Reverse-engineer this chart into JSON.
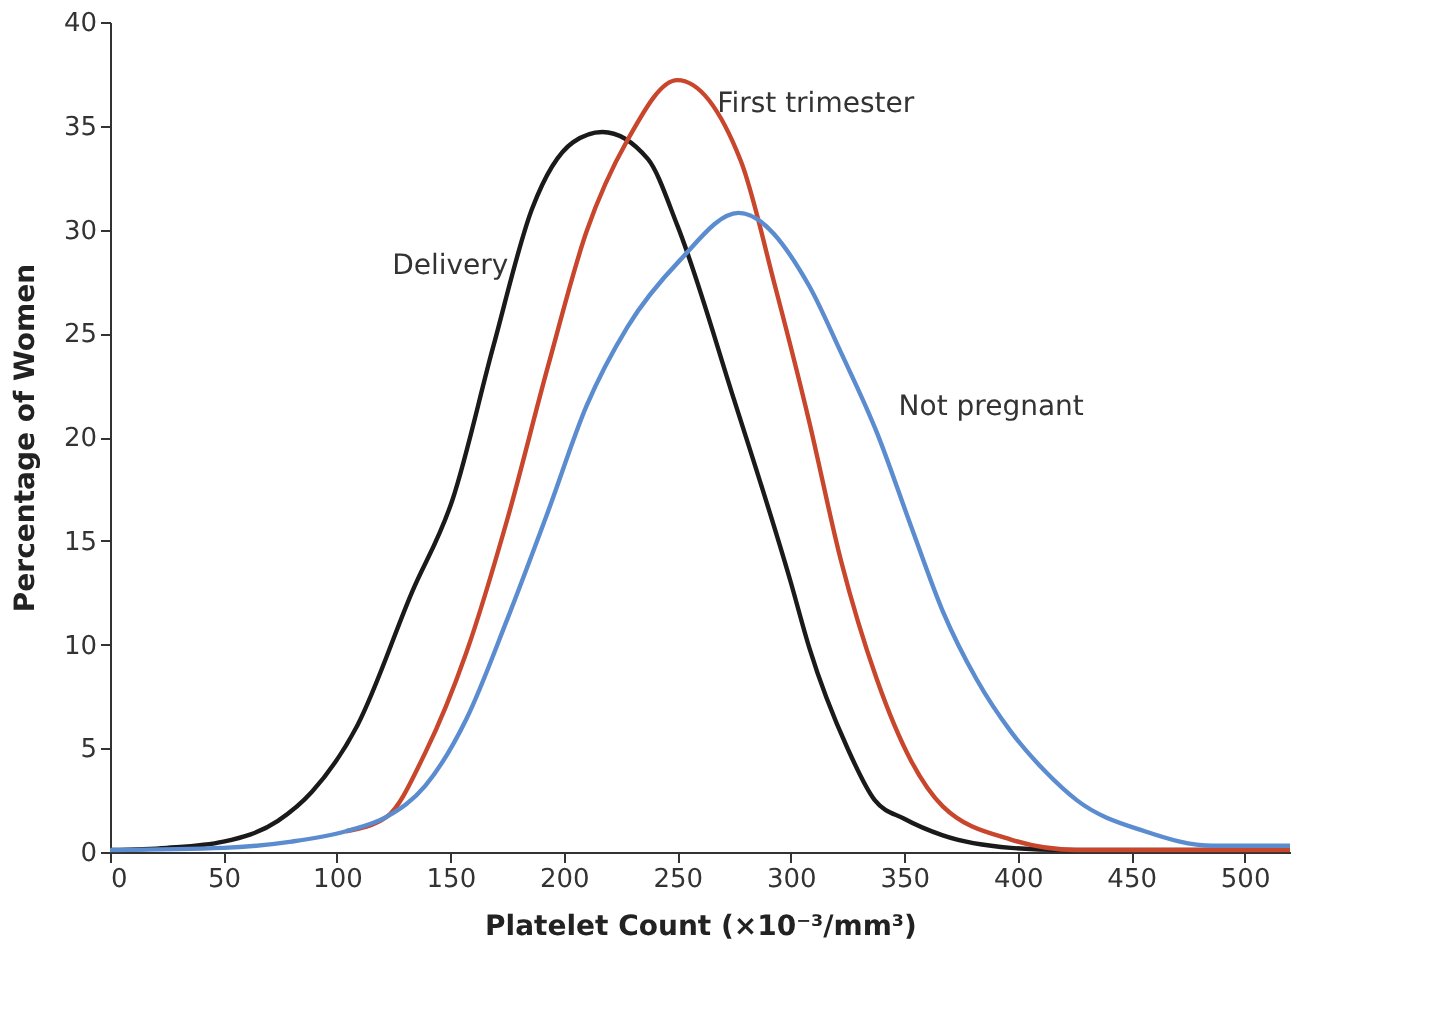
{
  "chart_data": {
    "type": "line",
    "xlabel": "Platelet Count (×10⁻³/mm³)",
    "ylabel": "Percentage of Women",
    "xlim": [
      0,
      520
    ],
    "xticks": [
      0,
      50,
      100,
      150,
      200,
      250,
      300,
      350,
      400,
      450,
      500
    ],
    "ylim": [
      0,
      40
    ],
    "yticks": [
      0,
      5,
      10,
      15,
      20,
      25,
      30,
      35,
      40
    ],
    "grid": false,
    "marker": "none",
    "line_style": "solid",
    "series": [
      {
        "name": "Delivery",
        "color": "#1a1a1a",
        "x": [
          0,
          25,
          50,
          74,
          89,
          109,
          133,
          151,
          169,
          186,
          204,
          217,
          237,
          250,
          275,
          300,
          308,
          325,
          337,
          350,
          367,
          397,
          420,
          520
        ],
        "values": [
          0.1,
          0.2,
          0.5,
          1.5,
          2.9,
          6.1,
          12.5,
          17,
          24.4,
          31,
          34.2,
          34.7,
          33.4,
          30.2,
          21.8,
          13,
          9.9,
          5,
          2.5,
          1.6,
          0.8,
          0.2,
          0.1,
          0.1
        ]
      },
      {
        "name": "First trimester",
        "color": "#c8462c",
        "x": [
          104,
          122,
          139,
          157,
          175,
          193,
          210,
          228,
          250,
          278,
          293,
          308,
          322,
          338,
          353,
          367,
          397,
          426,
          520
        ],
        "values": [
          1.0,
          1.7,
          4.8,
          9.6,
          16,
          23.4,
          29.9,
          34.3,
          37.2,
          33.3,
          27.3,
          20.8,
          14.1,
          8.3,
          4.4,
          2.2,
          0.6,
          0.1,
          0.1
        ]
      },
      {
        "name": "Not pregnant",
        "color": "#5b8ccf",
        "x": [
          0,
          50,
          80,
          104,
          122,
          139,
          157,
          175,
          193,
          210,
          228,
          251,
          277,
          308,
          322,
          338,
          353,
          367,
          382,
          397,
          412,
          426,
          456,
          486,
          520
        ],
        "values": [
          0.1,
          0.2,
          0.5,
          1.0,
          1.7,
          3.2,
          6.4,
          11.2,
          16.4,
          21.5,
          25.3,
          28.5,
          30.8,
          27.3,
          24.1,
          20.2,
          15.7,
          11.6,
          8.3,
          5.8,
          3.9,
          2.5,
          1.0,
          0.3,
          0.3
        ]
      }
    ]
  }
}
